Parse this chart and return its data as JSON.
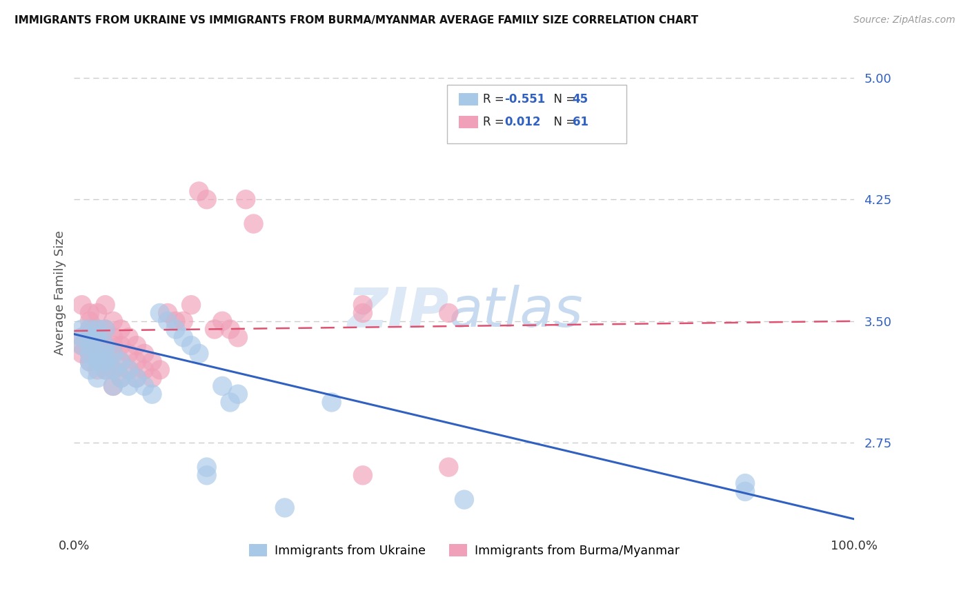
{
  "title": "IMMIGRANTS FROM UKRAINE VS IMMIGRANTS FROM BURMA/MYANMAR AVERAGE FAMILY SIZE CORRELATION CHART",
  "source": "Source: ZipAtlas.com",
  "ylabel": "Average Family Size",
  "yticks": [
    2.75,
    3.5,
    4.25,
    5.0
  ],
  "xlim": [
    0.0,
    1.0
  ],
  "ylim": [
    2.2,
    5.15
  ],
  "ukraine_color": "#a8c8e8",
  "burma_color": "#f0a0b8",
  "ukraine_line_color": "#3060c0",
  "burma_line_color": "#e05070",
  "ukraine_R": -0.551,
  "ukraine_N": 45,
  "burma_R": 0.012,
  "burma_N": 61,
  "ukraine_label": "Immigrants from Ukraine",
  "burma_label": "Immigrants from Burma/Myanmar",
  "watermark_zip": "ZIP",
  "watermark_atlas": "atlas",
  "ukraine_points_x": [
    0.01,
    0.01,
    0.01,
    0.02,
    0.02,
    0.02,
    0.02,
    0.02,
    0.02,
    0.03,
    0.03,
    0.03,
    0.03,
    0.03,
    0.04,
    0.04,
    0.04,
    0.04,
    0.04,
    0.05,
    0.05,
    0.05,
    0.06,
    0.06,
    0.07,
    0.07,
    0.08,
    0.09,
    0.1,
    0.11,
    0.12,
    0.13,
    0.14,
    0.15,
    0.16,
    0.17,
    0.17,
    0.19,
    0.2,
    0.21,
    0.27,
    0.33,
    0.5,
    0.86,
    0.86
  ],
  "ukraine_points_y": [
    3.35,
    3.4,
    3.45,
    3.2,
    3.25,
    3.3,
    3.35,
    3.4,
    3.45,
    3.15,
    3.25,
    3.3,
    3.4,
    3.45,
    3.2,
    3.25,
    3.3,
    3.35,
    3.45,
    3.1,
    3.2,
    3.3,
    3.15,
    3.25,
    3.1,
    3.2,
    3.15,
    3.1,
    3.05,
    3.55,
    3.5,
    3.45,
    3.4,
    3.35,
    3.3,
    2.55,
    2.6,
    3.1,
    3.0,
    3.05,
    2.35,
    3.0,
    2.4,
    2.45,
    2.5
  ],
  "burma_points_x": [
    0.01,
    0.01,
    0.01,
    0.01,
    0.02,
    0.02,
    0.02,
    0.02,
    0.02,
    0.02,
    0.02,
    0.03,
    0.03,
    0.03,
    0.03,
    0.03,
    0.03,
    0.04,
    0.04,
    0.04,
    0.04,
    0.04,
    0.04,
    0.05,
    0.05,
    0.05,
    0.05,
    0.05,
    0.05,
    0.06,
    0.06,
    0.06,
    0.06,
    0.07,
    0.07,
    0.07,
    0.08,
    0.08,
    0.08,
    0.09,
    0.09,
    0.1,
    0.1,
    0.11,
    0.12,
    0.13,
    0.14,
    0.15,
    0.16,
    0.17,
    0.18,
    0.19,
    0.2,
    0.21,
    0.22,
    0.23,
    0.37,
    0.37,
    0.37,
    0.48,
    0.48
  ],
  "burma_points_y": [
    3.3,
    3.35,
    3.4,
    3.6,
    3.25,
    3.3,
    3.35,
    3.4,
    3.45,
    3.5,
    3.55,
    3.2,
    3.3,
    3.35,
    3.4,
    3.45,
    3.55,
    3.2,
    3.25,
    3.3,
    3.35,
    3.45,
    3.6,
    3.1,
    3.2,
    3.3,
    3.35,
    3.4,
    3.5,
    3.15,
    3.25,
    3.35,
    3.45,
    3.2,
    3.3,
    3.4,
    3.15,
    3.25,
    3.35,
    3.2,
    3.3,
    3.15,
    3.25,
    3.2,
    3.55,
    3.5,
    3.5,
    3.6,
    4.3,
    4.25,
    3.45,
    3.5,
    3.45,
    3.4,
    4.25,
    4.1,
    3.55,
    3.6,
    2.55,
    3.55,
    2.6
  ]
}
